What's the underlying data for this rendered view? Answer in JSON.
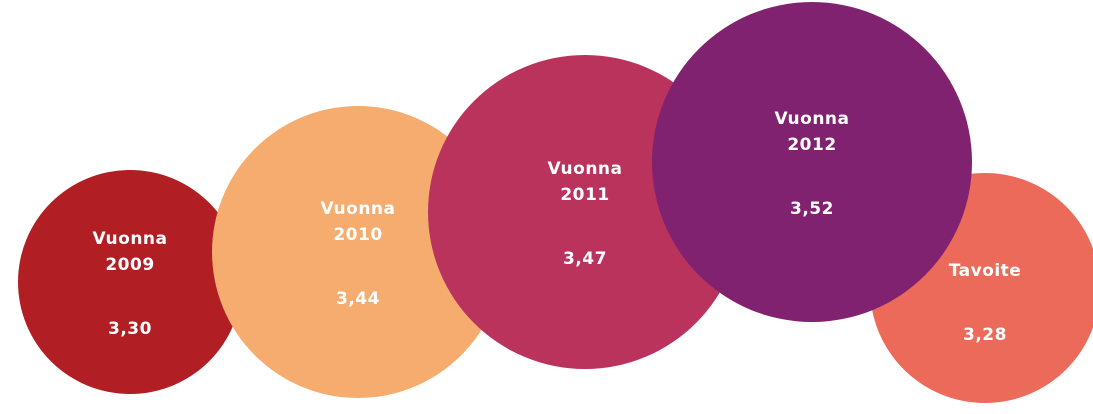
{
  "chart_data": {
    "type": "bubble",
    "categories": [
      "Vuonna 2009",
      "Vuonna 2010",
      "Vuonna 2011",
      "Vuonna 2012",
      "Tavoite"
    ],
    "values": [
      3.3,
      3.44,
      3.47,
      3.52,
      3.28
    ],
    "value_labels": [
      "3,30",
      "3,44",
      "3,47",
      "3,52",
      "3,28"
    ],
    "colors": [
      "#b11f24",
      "#f5ac6e",
      "#b9335c",
      "#80226f",
      "#ec6a5a"
    ]
  }
}
